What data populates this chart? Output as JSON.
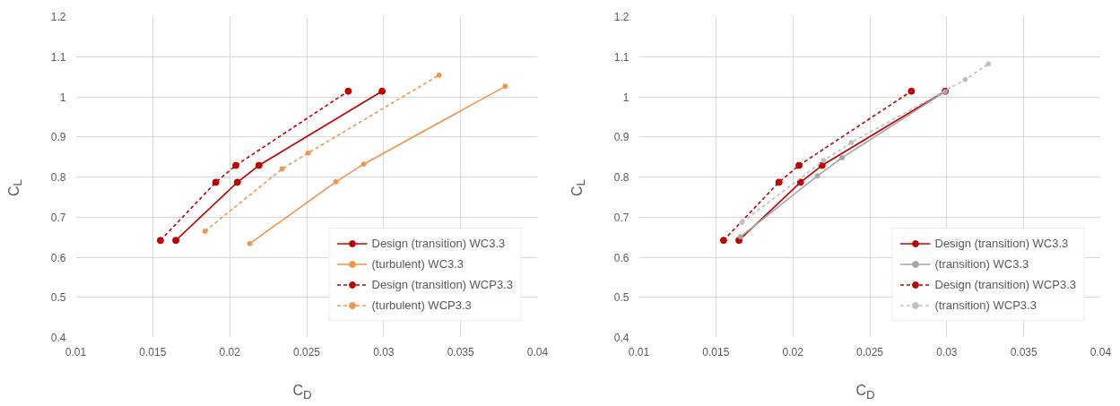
{
  "chart_data": [
    {
      "type": "line",
      "xlabel": "C$_{D}$",
      "ylabel": "C$_{L}$",
      "xlim": [
        0.01,
        0.04
      ],
      "ylim": [
        0.4,
        1.2
      ],
      "xticks": [
        0.01,
        0.015,
        0.02,
        0.025,
        0.03,
        0.035,
        0.04
      ],
      "yticks": [
        0.4,
        0.5,
        0.6,
        0.7,
        0.8,
        0.9,
        1,
        1.1,
        1.2
      ],
      "grid": true,
      "legend": "bottom right",
      "marker": "circle",
      "series": [
        {
          "name": "Design (transition) WC3.3",
          "color": "#c00000",
          "line_style": "solid",
          "x": [
            0.0165,
            0.0205,
            0.0219,
            0.0299
          ],
          "values": [
            0.642,
            0.787,
            0.829,
            1.014
          ]
        },
        {
          "name": "(turbulent) WC3.3",
          "color": "#f0954a",
          "line_style": "solid",
          "x": [
            0.0213,
            0.0269,
            0.0287,
            0.0379
          ],
          "values": [
            0.634,
            0.788,
            0.832,
            1.026
          ]
        },
        {
          "name": "Design (transition) WCP3.3",
          "color": "#c00000",
          "line_style": "dashed",
          "x": [
            0.0155,
            0.0191,
            0.0204,
            0.0277
          ],
          "values": [
            0.642,
            0.787,
            0.829,
            1.014
          ]
        },
        {
          "name": "(turbulent) WCP3.3",
          "color": "#f0954a",
          "line_style": "dashed",
          "x": [
            0.0184,
            0.0234,
            0.0251,
            0.0336
          ],
          "values": [
            0.665,
            0.82,
            0.86,
            1.054
          ]
        }
      ]
    },
    {
      "type": "line",
      "xlabel": "C$_{D}$",
      "ylabel": "C$_{L}$",
      "xlim": [
        0.01,
        0.04
      ],
      "ylim": [
        0.4,
        1.2
      ],
      "xticks": [
        0.01,
        0.015,
        0.02,
        0.025,
        0.03,
        0.035,
        0.04
      ],
      "yticks": [
        0.4,
        0.5,
        0.6,
        0.7,
        0.8,
        0.9,
        1,
        1.1,
        1.2
      ],
      "grid": true,
      "legend": "bottom right",
      "marker": "circle",
      "series": [
        {
          "name": "Design (transition) WC3.3",
          "color": "#c00000",
          "line_style": "solid",
          "x": [
            0.0165,
            0.0205,
            0.0219,
            0.0299
          ],
          "values": [
            0.642,
            0.787,
            0.829,
            1.014
          ]
        },
        {
          "name": "(transition) WC3.3",
          "color": "#a6a6a6",
          "line_style": "solid",
          "x": [
            0.0166,
            0.0216,
            0.0232,
            0.0299
          ],
          "values": [
            0.651,
            0.803,
            0.848,
            1.013
          ]
        },
        {
          "name": "Design (transition) WCP3.3",
          "color": "#c00000",
          "line_style": "dashed",
          "x": [
            0.0155,
            0.0191,
            0.0204,
            0.0277
          ],
          "values": [
            0.642,
            0.787,
            0.829,
            1.014
          ]
        },
        {
          "name": "(transition) WCP3.3",
          "color": "#bfbfbf",
          "line_style": "dashed",
          "x": [
            0.0167,
            0.022,
            0.0238,
            0.0312,
            0.0327
          ],
          "values": [
            0.687,
            0.841,
            0.886,
            1.043,
            1.082
          ]
        }
      ]
    }
  ]
}
